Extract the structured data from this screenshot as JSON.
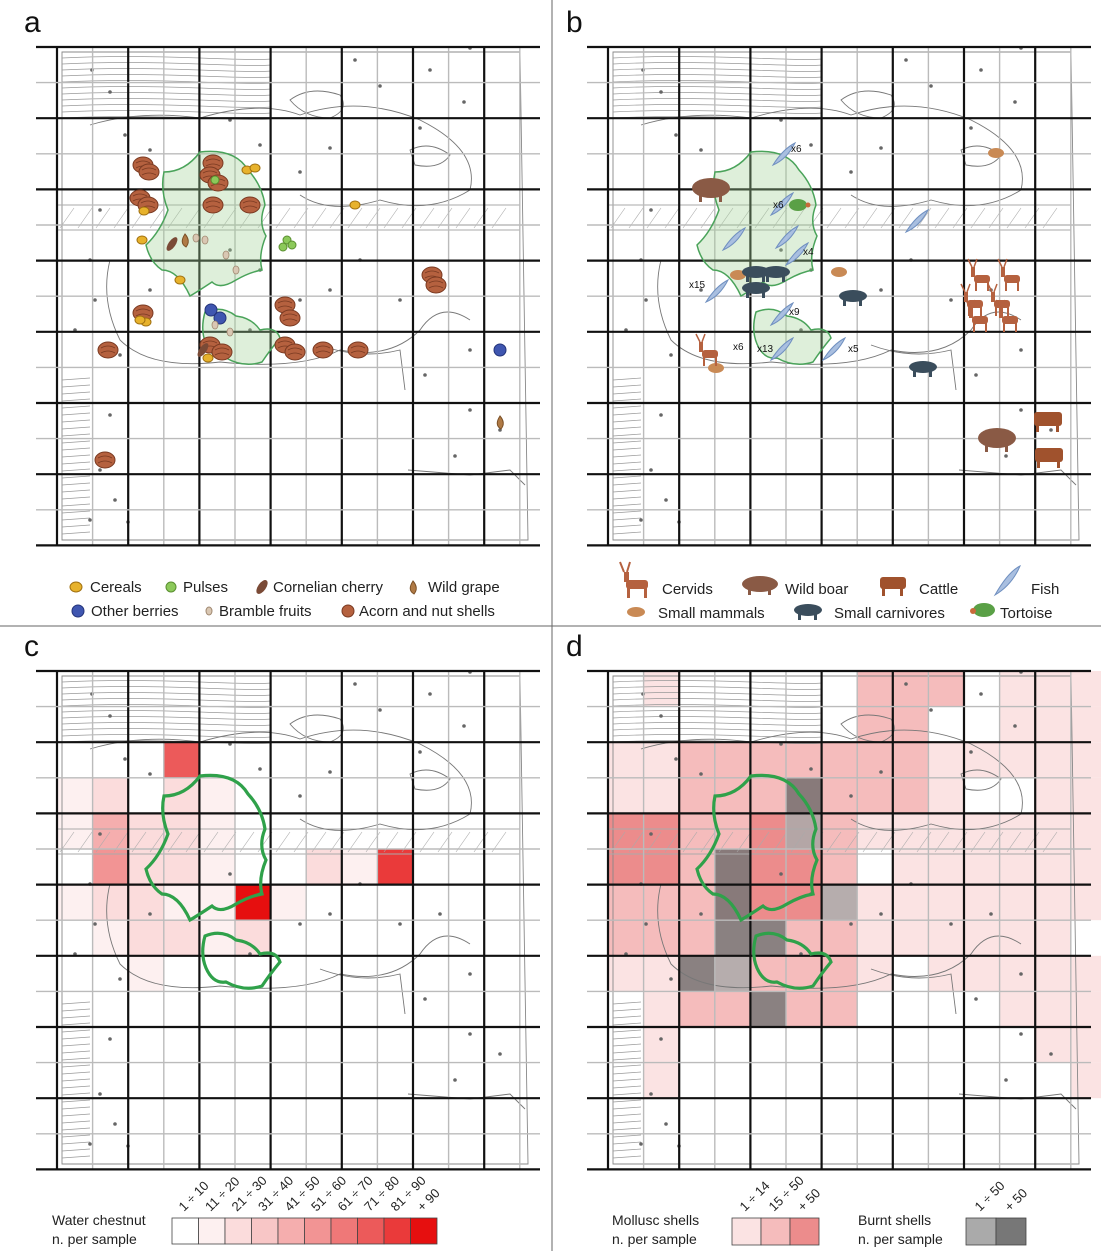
{
  "panels": [
    {
      "letter": "a"
    },
    {
      "letter": "b"
    },
    {
      "letter": "c"
    },
    {
      "letter": "d"
    }
  ],
  "panel_a": {
    "legend": [
      {
        "label": "Cereals",
        "icon": "cereal-icon",
        "color": "#e7b22c"
      },
      {
        "label": "Pulses",
        "icon": "pulse-icon",
        "color": "#8cc95a"
      },
      {
        "label": "Cornelian cherry",
        "icon": "cornelian-cherry-icon",
        "color": "#7a4a36"
      },
      {
        "label": "Wild grape",
        "icon": "wild-grape-icon",
        "color": "#b07a45"
      },
      {
        "label": "Other berries",
        "icon": "berry-icon",
        "color": "#3f56b0"
      },
      {
        "label": "Bramble fruits",
        "icon": "bramble-icon",
        "color": "#d9c7b3"
      },
      {
        "label": "Acorn and nut shells",
        "icon": "nut-shell-icon",
        "color": "#b5613f"
      }
    ]
  },
  "panel_b": {
    "legend": [
      {
        "label": "Cervids",
        "icon": "cervid-icon",
        "color": "#b5613f"
      },
      {
        "label": "Wild boar",
        "icon": "wild-boar-icon",
        "color": "#8a5a45"
      },
      {
        "label": "Cattle",
        "icon": "cattle-icon",
        "color": "#a0522d"
      },
      {
        "label": "Fish",
        "icon": "fish-icon",
        "color": "#a9bfe0"
      },
      {
        "label": "Small mammals",
        "icon": "small-mammal-icon",
        "color": "#c98a55"
      },
      {
        "label": "Small carnivores",
        "icon": "small-carnivore-icon",
        "color": "#3a4d5c"
      },
      {
        "label": "Tortoise",
        "icon": "tortoise-icon",
        "color": "#5aa046"
      }
    ],
    "counts": [
      "x6",
      "x6",
      "x4",
      "x15",
      "x9",
      "x6",
      "x13",
      "x5"
    ]
  },
  "panel_c": {
    "legend_title": "Water chestnut",
    "legend_subtitle": "n. per sample",
    "classes": [
      "1 ÷ 10",
      "11 ÷ 20",
      "21 ÷ 30",
      "31 ÷ 40",
      "41 ÷ 50",
      "51 ÷ 60",
      "61 ÷ 70",
      "71 ÷ 80",
      "81 ÷ 90",
      "+ 90"
    ],
    "colors": [
      "#ffffff",
      "#fdf0f0",
      "#fbdcdc",
      "#f8c6c6",
      "#f5aeae",
      "#f29494",
      "#ef7878",
      "#ec5a5a",
      "#ea3a3a",
      "#e60f0f"
    ]
  },
  "panel_d": {
    "mollusc_title": "Mollusc shells",
    "mollusc_subtitle": "n. per sample",
    "mollusc_classes": [
      "1 ÷ 14",
      "15 ÷ 50",
      "+ 50"
    ],
    "mollusc_colors": [
      "#fbe3e3",
      "#f5bcbc",
      "#ec8c8c"
    ],
    "burnt_title": "Burnt shells",
    "burnt_subtitle": "n. per sample",
    "burnt_classes": [
      "1 ÷ 50",
      "+ 50"
    ],
    "burnt_colors": [
      "#aaaaaa",
      "#777777"
    ]
  }
}
